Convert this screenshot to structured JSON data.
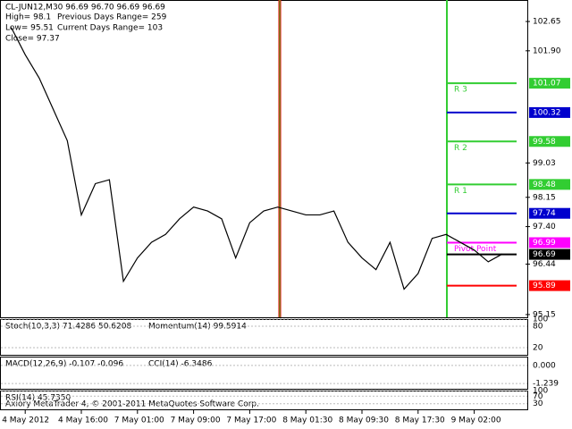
{
  "chart_data": {
    "type": "line",
    "header": [
      "CL-JUN12,M30  96.69 96.70 96.69 96.69",
      "High= 98.1",
      "Previous Days Range= 259",
      "Low= 95.51",
      "Current Days Range= 103",
      "Close= 97.37"
    ],
    "categories": [
      null,
      "4 May 2012",
      null,
      null,
      null,
      "4 May 16:00",
      null,
      null,
      null,
      "7 May 01:00",
      null,
      null,
      null,
      "7 May 09:00",
      null,
      null,
      null,
      "7 May 17:00",
      null,
      null,
      null,
      "8 May 01:30",
      null,
      null,
      null,
      "8 May 09:30",
      null,
      null,
      null,
      "8 May 17:30",
      null,
      null,
      null,
      "9 May 02:00",
      null,
      null
    ],
    "series": [
      {
        "color": "#000000",
        "values": [
          102.5,
          101.8,
          101.2,
          100.4,
          99.6,
          97.7,
          98.5,
          98.6,
          96.0,
          96.6,
          97.0,
          97.2,
          97.6,
          97.9,
          97.8,
          97.6,
          96.6,
          97.5,
          97.8,
          97.9,
          97.8,
          97.7,
          97.7,
          97.8,
          97.0,
          96.6,
          96.3,
          97.0,
          95.8,
          96.2,
          97.1,
          97.2,
          97.0,
          96.8,
          96.5,
          96.7
        ]
      }
    ],
    "ylim": [
      95.08,
      103.2
    ],
    "yticks": [
      102.65,
      {
        "value": 101.9,
        "label": "101.90"
      },
      99.03,
      98.15,
      {
        "value": 97.4,
        "label": "97.40"
      },
      96.44,
      95.15
    ],
    "levels": [
      {
        "value": 101.07,
        "color": "#32cd32",
        "name": "R 3"
      },
      {
        "value": 100.32,
        "color": "#0000cd"
      },
      {
        "value": 99.58,
        "color": "#32cd32",
        "name": "R 2"
      },
      {
        "value": 98.48,
        "color": "#32cd32",
        "name": "R 1"
      },
      {
        "value": 97.74,
        "color": "#0000cd"
      },
      {
        "value": 96.99,
        "color": "#ff00ff",
        "name": "Pivot Point"
      },
      {
        "value": 96.69,
        "color": "#000000"
      },
      {
        "value": 95.89,
        "color": "#ff0000"
      }
    ],
    "panels": [
      {
        "texts": [
          "Stoch(10,3,3) 71.4286 50.6208",
          "Momentum(14) 99.5914"
        ],
        "ylim": [
          0,
          100
        ],
        "yticks": [
          100,
          80,
          20
        ]
      },
      {
        "texts": [
          "MACD(12,26,9) -0.107 -0.096",
          "CCI(14) -6.3486"
        ],
        "ylim": [
          -1.6,
          0.6
        ],
        "yticks": [
          {
            "value": 0,
            "label": "0.000"
          },
          {
            "value": -1.239,
            "label": "-1.239"
          }
        ]
      },
      {
        "texts": [
          "RSI(14) 45.7350"
        ],
        "ylim": [
          0,
          100
        ],
        "yticks": [
          100,
          70,
          30
        ]
      }
    ],
    "footer": "Axiory MetaTrader 4, © 2001-2011 MetaQuotes Software Corp."
  }
}
